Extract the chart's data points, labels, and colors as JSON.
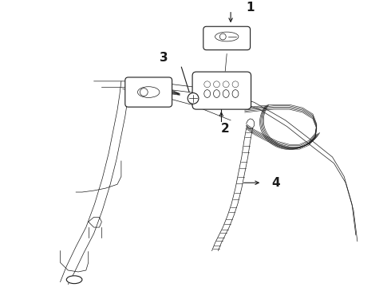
{
  "bg_color": "#ffffff",
  "line_color": "#1a1a1a",
  "lw_main": 0.8,
  "lw_thin": 0.5,
  "lw_thick": 1.2,
  "label_1": "1",
  "label_2": "2",
  "label_3": "3",
  "label_4": "4",
  "label_fontsize": 10,
  "fig_width": 4.9,
  "fig_height": 3.6,
  "dpi": 100
}
